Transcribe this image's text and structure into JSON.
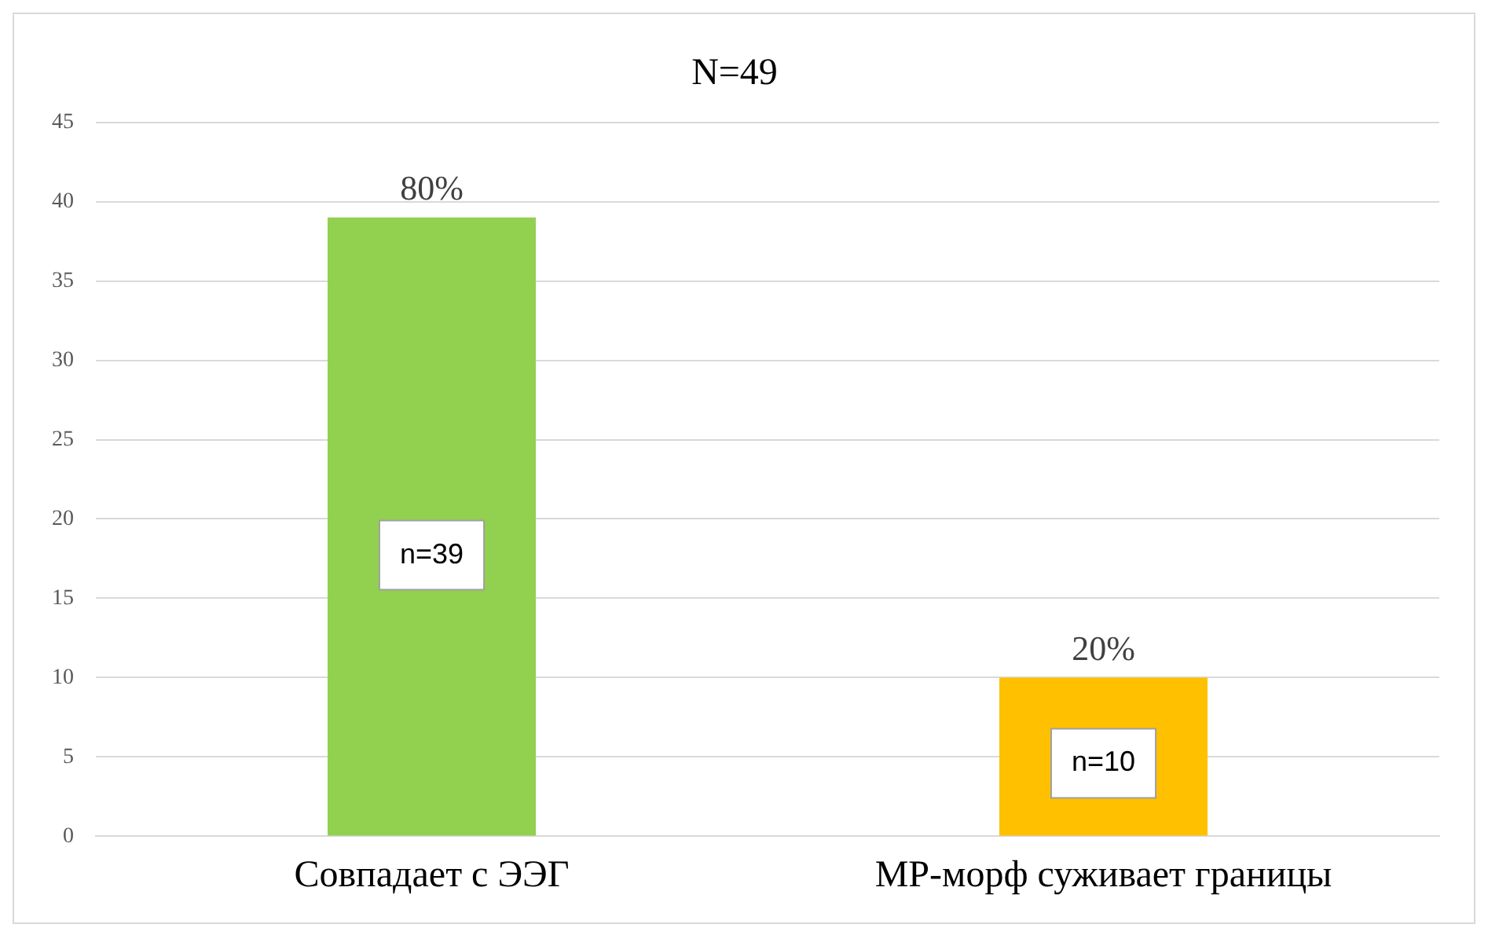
{
  "chart_data": {
    "type": "bar",
    "title": "N=49",
    "categories": [
      "Совпадает с ЭЭГ",
      "МР-морф суживает границы"
    ],
    "values": [
      39,
      10
    ],
    "colors": [
      "#92d050",
      "#ffc000"
    ],
    "value_labels": [
      "n=39",
      "n=10"
    ],
    "annotations": [
      "80%",
      "20%"
    ],
    "ylim": [
      0,
      45
    ],
    "yticks": [
      0,
      5,
      10,
      15,
      20,
      25,
      30,
      35,
      40,
      45
    ],
    "grid": "y",
    "legend": false
  }
}
